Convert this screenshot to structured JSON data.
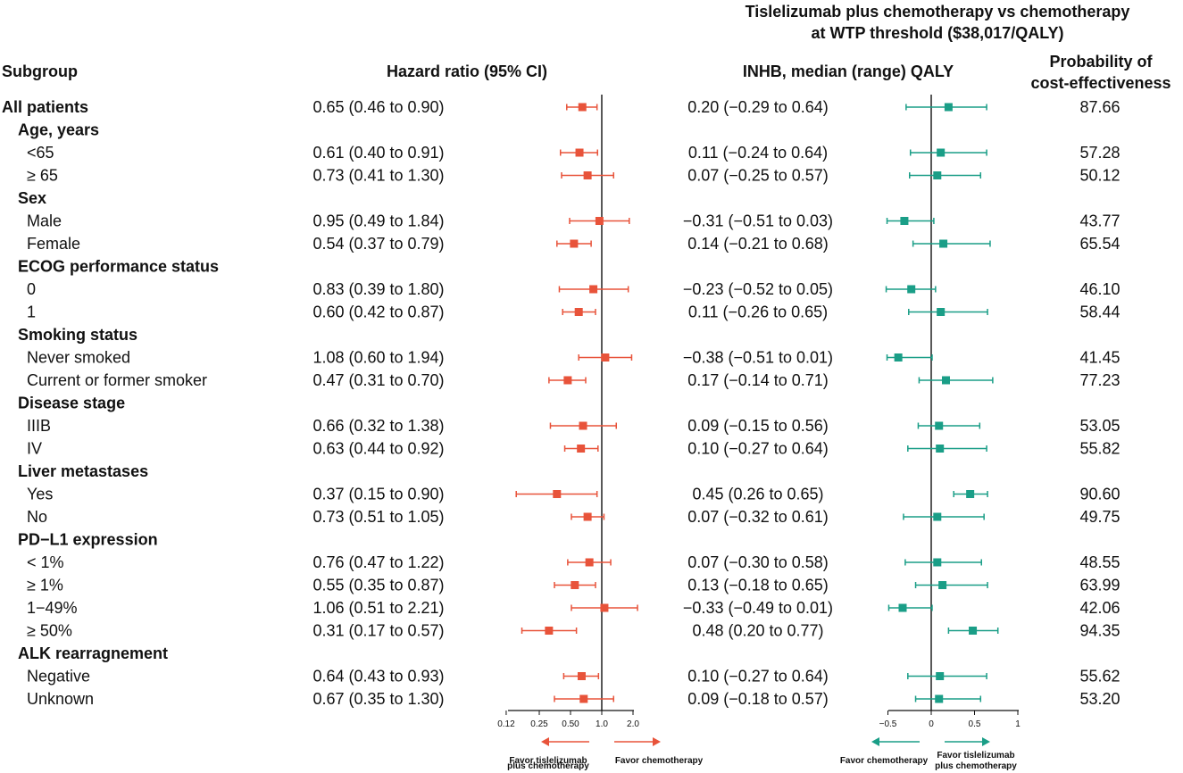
{
  "chart_data": {
    "type": "forest",
    "title": "Tislelizumab plus chemotherapy vs chemotherapy",
    "subtitle": "at WTP threshold  ($38,017/QALY)",
    "headers": {
      "subgroup": "Subgroup",
      "hr": "Hazard ratio (95% CI)",
      "inhb": "INHB, median (range) QALY",
      "prob_line1": "Probability of",
      "prob_line2": "cost-effectiveness"
    },
    "colors": {
      "hr": "#e8533a",
      "inhb": "#1a9e87",
      "axis": "#111111"
    },
    "rows": [
      {
        "label": "All patients",
        "kind": "top",
        "hr_text": "0.65 (0.46 to 0.90)",
        "hr": [
          0.65,
          0.46,
          0.9
        ],
        "inhb_text": "0.20 (−0.29 to 0.64)",
        "inhb": [
          0.2,
          -0.29,
          0.64
        ],
        "prob": "87.66"
      },
      {
        "label": "Age, years",
        "kind": "group"
      },
      {
        "label": "<65",
        "kind": "sub",
        "hr_text": "0.61 (0.40 to 0.91)",
        "hr": [
          0.61,
          0.4,
          0.91
        ],
        "inhb_text": "0.11 (−0.24 to 0.64)",
        "inhb": [
          0.11,
          -0.24,
          0.64
        ],
        "prob": "57.28"
      },
      {
        "label": "≥  65",
        "kind": "sub",
        "hr_text": "0.73 (0.41 to 1.30)",
        "hr": [
          0.73,
          0.41,
          1.3
        ],
        "inhb_text": "0.07 (−0.25 to 0.57)",
        "inhb": [
          0.07,
          -0.25,
          0.57
        ],
        "prob": "50.12"
      },
      {
        "label": "Sex",
        "kind": "group"
      },
      {
        "label": "Male",
        "kind": "sub",
        "hr_text": "0.95 (0.49 to 1.84)",
        "hr": [
          0.95,
          0.49,
          1.84
        ],
        "inhb_text": "−0.31 (−0.51 to 0.03)",
        "inhb": [
          -0.31,
          -0.51,
          0.03
        ],
        "prob": "43.77"
      },
      {
        "label": "Female",
        "kind": "sub",
        "hr_text": "0.54 (0.37 to 0.79)",
        "hr": [
          0.54,
          0.37,
          0.79
        ],
        "inhb_text": "0.14 (−0.21 to 0.68)",
        "inhb": [
          0.14,
          -0.21,
          0.68
        ],
        "prob": "65.54"
      },
      {
        "label": "ECOG performance status",
        "kind": "group"
      },
      {
        "label": "0",
        "kind": "sub",
        "hr_text": "0.83 (0.39 to 1.80)",
        "hr": [
          0.83,
          0.39,
          1.8
        ],
        "inhb_text": "−0.23 (−0.52 to 0.05)",
        "inhb": [
          -0.23,
          -0.52,
          0.05
        ],
        "prob": "46.10"
      },
      {
        "label": "1",
        "kind": "sub",
        "hr_text": "0.60 (0.42 to 0.87)",
        "hr": [
          0.6,
          0.42,
          0.87
        ],
        "inhb_text": "0.11 (−0.26 to 0.65)",
        "inhb": [
          0.11,
          -0.26,
          0.65
        ],
        "prob": "58.44"
      },
      {
        "label": "Smoking status",
        "kind": "group"
      },
      {
        "label": "Never smoked",
        "kind": "sub",
        "hr_text": "1.08 (0.60 to 1.94)",
        "hr": [
          1.08,
          0.6,
          1.94
        ],
        "inhb_text": "−0.38 (−0.51 to 0.01)",
        "inhb": [
          -0.38,
          -0.51,
          0.01
        ],
        "prob": "41.45"
      },
      {
        "label": "Current or former smoker",
        "kind": "sub",
        "hr_text": "0.47 (0.31 to 0.70)",
        "hr": [
          0.47,
          0.31,
          0.7
        ],
        "inhb_text": "0.17 (−0.14 to 0.71)",
        "inhb": [
          0.17,
          -0.14,
          0.71
        ],
        "prob": "77.23"
      },
      {
        "label": "Disease stage",
        "kind": "group"
      },
      {
        "label": "IIIB",
        "kind": "sub",
        "hr_text": "0.66 (0.32 to 1.38)",
        "hr": [
          0.66,
          0.32,
          1.38
        ],
        "inhb_text": "0.09 (−0.15 to 0.56)",
        "inhb": [
          0.09,
          -0.15,
          0.56
        ],
        "prob": "53.05"
      },
      {
        "label": "IV",
        "kind": "sub",
        "hr_text": "0.63 (0.44 to 0.92)",
        "hr": [
          0.63,
          0.44,
          0.92
        ],
        "inhb_text": "0.10 (−0.27 to 0.64)",
        "inhb": [
          0.1,
          -0.27,
          0.64
        ],
        "prob": "55.82"
      },
      {
        "label": "Liver metastases",
        "kind": "group"
      },
      {
        "label": "Yes",
        "kind": "sub",
        "hr_text": "0.37 (0.15 to 0.90)",
        "hr": [
          0.37,
          0.15,
          0.9
        ],
        "inhb_text": "0.45 (0.26 to 0.65)",
        "inhb": [
          0.45,
          0.26,
          0.65
        ],
        "prob": "90.60"
      },
      {
        "label": "No",
        "kind": "sub",
        "hr_text": "0.73 (0.51 to 1.05)",
        "hr": [
          0.73,
          0.51,
          1.05
        ],
        "inhb_text": "0.07 (−0.32 to 0.61)",
        "inhb": [
          0.07,
          -0.32,
          0.61
        ],
        "prob": "49.75"
      },
      {
        "label": "PD−L1 expression",
        "kind": "group"
      },
      {
        "label": "< 1%",
        "kind": "sub",
        "hr_text": "0.76 (0.47 to 1.22)",
        "hr": [
          0.76,
          0.47,
          1.22
        ],
        "inhb_text": "0.07 (−0.30 to 0.58)",
        "inhb": [
          0.07,
          -0.3,
          0.58
        ],
        "prob": "48.55"
      },
      {
        "label": "≥  1%",
        "kind": "sub",
        "hr_text": "0.55 (0.35 to 0.87)",
        "hr": [
          0.55,
          0.35,
          0.87
        ],
        "inhb_text": "0.13 (−0.18 to 0.65)",
        "inhb": [
          0.13,
          -0.18,
          0.65
        ],
        "prob": "63.99"
      },
      {
        "label": "1−49%",
        "kind": "sub",
        "hr_text": "1.06 (0.51 to 2.21)",
        "hr": [
          1.06,
          0.51,
          2.21
        ],
        "inhb_text": "−0.33 (−0.49 to 0.01)",
        "inhb": [
          -0.33,
          -0.49,
          0.01
        ],
        "prob": "42.06"
      },
      {
        "label": "≥  50%",
        "kind": "sub",
        "hr_text": "0.31 (0.17 to 0.57)",
        "hr": [
          0.31,
          0.17,
          0.57
        ],
        "inhb_text": "0.48 (0.20 to 0.77)",
        "inhb": [
          0.48,
          0.2,
          0.77
        ],
        "prob": "94.35"
      },
      {
        "label": "ALK rearragnement",
        "kind": "group"
      },
      {
        "label": "Negative",
        "kind": "sub",
        "hr_text": "0.64 (0.43 to 0.93)",
        "hr": [
          0.64,
          0.43,
          0.93
        ],
        "inhb_text": "0.10 (−0.27 to 0.64)",
        "inhb": [
          0.1,
          -0.27,
          0.64
        ],
        "prob": "55.62"
      },
      {
        "label": "Unknown",
        "kind": "sub",
        "hr_text": "0.67 (0.35 to 1.30)",
        "hr": [
          0.67,
          0.35,
          1.3
        ],
        "inhb_text": "0.09 (−0.18 to 0.57)",
        "inhb": [
          0.09,
          -0.18,
          0.57
        ],
        "prob": "53.20"
      }
    ],
    "hr_axis": {
      "scale": "log",
      "ticks": [
        0.12,
        0.25,
        0.5,
        1.0,
        2.0
      ],
      "tick_labels": [
        "0.12",
        "0.25",
        "0.50",
        "1.0",
        "2.0"
      ],
      "reference": 1.0,
      "favor_left": [
        "Favor tislelizumab",
        "plus chemotherapy"
      ],
      "favor_right": [
        "Favor chemotherapy"
      ]
    },
    "inhb_axis": {
      "scale": "linear",
      "ticks": [
        -0.5,
        0,
        0.5,
        1
      ],
      "tick_labels": [
        "−0.5",
        "0",
        "0.5",
        "1"
      ],
      "reference": 0,
      "favor_left": [
        "Favor chemotherapy"
      ],
      "favor_right": [
        "Favor tislelizumab",
        "plus chemotherapy"
      ]
    }
  }
}
